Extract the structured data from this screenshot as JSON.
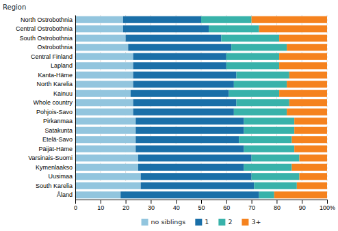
{
  "chart_data": {
    "type": "bar",
    "orientation": "horizontal",
    "stacked": true,
    "ylabel": "Region",
    "categories": [
      "North Ostrobothnia",
      "Central Ostrobothnia",
      "South Ostrobothnia",
      "Ostrobothnia",
      "Central Finland",
      "Lapland",
      "Kanta-Häme",
      "North Karelia",
      "Kainuu",
      "Whole country",
      "Pohjois-Savo",
      "Pirkanmaa",
      "Satakunta",
      "Etelä-Savo",
      "Päijät-Häme",
      "Varsinais-Suomi",
      "Kymenlaakso",
      "Uusimaa",
      "South Karelia",
      "Åland"
    ],
    "series": [
      {
        "name": "no siblings",
        "color": "#92c5de",
        "values": [
          19,
          19,
          20,
          21,
          23,
          23,
          23,
          23,
          22,
          23,
          23,
          24,
          24,
          24,
          24,
          25,
          25,
          26,
          26,
          18
        ]
      },
      {
        "name": "1",
        "color": "#1a6fa8",
        "values": [
          31,
          34,
          38,
          41,
          37,
          37,
          41,
          40,
          39,
          41,
          40,
          43,
          43,
          41,
          43,
          45,
          42,
          44,
          45,
          55
        ]
      },
      {
        "name": "2",
        "color": "#38b2aa",
        "values": [
          20,
          20,
          23,
          22,
          21,
          21,
          21,
          21,
          20,
          21,
          21,
          20,
          20,
          21,
          20,
          19,
          19,
          19,
          17,
          6
        ]
      },
      {
        "name": "3+",
        "color": "#f5821e",
        "values": [
          30,
          27,
          19,
          16,
          19,
          19,
          15,
          16,
          19,
          15,
          16,
          13,
          13,
          14,
          13,
          11,
          14,
          11,
          12,
          21
        ]
      }
    ],
    "xlim": [
      0,
      100
    ],
    "xticks": [
      0,
      10,
      20,
      30,
      40,
      50,
      60,
      70,
      80,
      90,
      {
        "value": 100,
        "label": "100%"
      }
    ],
    "grid": true,
    "legend": "bottom"
  }
}
